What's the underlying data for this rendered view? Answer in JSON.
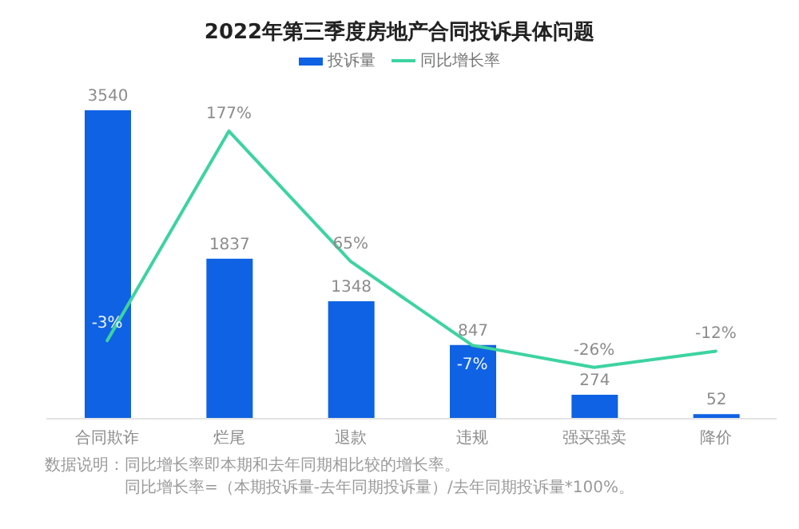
{
  "chart_data": {
    "type": "bar",
    "title": "2022年第三季度房地产合同投诉具体问题",
    "categories": [
      "合同欺诈",
      "烂尾",
      "退款",
      "违规",
      "强买强卖",
      "降价"
    ],
    "series": [
      {
        "name": "投诉量",
        "color": "#0f62e3",
        "values": [
          3540,
          1837,
          1348,
          847,
          274,
          52
        ]
      },
      {
        "name": "同比增长率",
        "type": "line",
        "axis": "y2",
        "color": "#3dd3a0",
        "values": [
          -3,
          177,
          65,
          -7,
          -26,
          -12
        ],
        "value_labels": [
          "-3%",
          "177%",
          "65%",
          "-7%",
          "-26%",
          "-12%"
        ]
      }
    ],
    "data_labels": true,
    "legend": "top",
    "marker": "none",
    "line_style": "solid",
    "tick_labels": "x",
    "annotations": [
      "数据说明：同比增长率即本期和去年同期相比较的增长率。",
      "同比增长率=（本期投诉量-去年同期投诉量）/去年同期投诉量*100%。"
    ]
  }
}
